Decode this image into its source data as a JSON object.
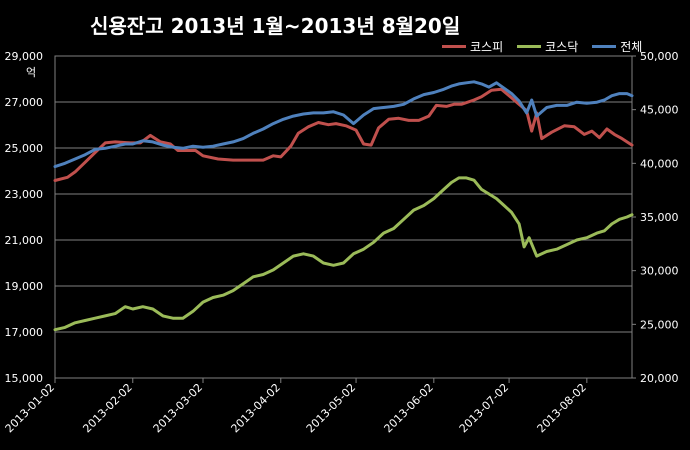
{
  "chart_data": {
    "type": "line",
    "title": "신용잔고 2013년 1월~2013년 8월20일",
    "left_axis_unit": "억",
    "y_left": {
      "min": 15000,
      "max": 29000,
      "ticks": [
        "15,000",
        "17,000",
        "19,000",
        "21,000",
        "23,000",
        "25,000",
        "27,000",
        "29,000"
      ]
    },
    "y_right": {
      "min": 20000,
      "max": 50000,
      "ticks": [
        "20,000",
        "25,000",
        "30,000",
        "35,000",
        "40,000",
        "45,000",
        "50,000"
      ]
    },
    "x_range": [
      "2013-01-02",
      "2013-08-20"
    ],
    "x_ticks": [
      "2013-01-02",
      "2013-02-02",
      "2013-03-02",
      "2013-04-02",
      "2013-05-02",
      "2013-06-02",
      "2013-07-02",
      "2013-08-02"
    ],
    "grid": true,
    "legend": "top-right",
    "series": [
      {
        "name": "코스피",
        "color": "#c0504d",
        "axis": "right",
        "points": [
          [
            "2013-01-02",
            38400
          ],
          [
            "2013-01-07",
            38700
          ],
          [
            "2013-01-10",
            39200
          ],
          [
            "2013-01-14",
            40100
          ],
          [
            "2013-01-18",
            41000
          ],
          [
            "2013-01-22",
            41900
          ],
          [
            "2013-01-26",
            42000
          ],
          [
            "2013-02-01",
            41900
          ],
          [
            "2013-02-05",
            41900
          ],
          [
            "2013-02-09",
            42600
          ],
          [
            "2013-02-13",
            42000
          ],
          [
            "2013-02-17",
            41800
          ],
          [
            "2013-02-20",
            41200
          ],
          [
            "2013-02-27",
            41200
          ],
          [
            "2013-03-02",
            40700
          ],
          [
            "2013-03-08",
            40400
          ],
          [
            "2013-03-14",
            40300
          ],
          [
            "2013-03-20",
            40300
          ],
          [
            "2013-03-26",
            40300
          ],
          [
            "2013-03-30",
            40700
          ],
          [
            "2013-04-02",
            40600
          ],
          [
            "2013-04-06",
            41600
          ],
          [
            "2013-04-09",
            42800
          ],
          [
            "2013-04-13",
            43400
          ],
          [
            "2013-04-17",
            43800
          ],
          [
            "2013-04-21",
            43600
          ],
          [
            "2013-04-24",
            43700
          ],
          [
            "2013-04-28",
            43500
          ],
          [
            "2013-05-02",
            43100
          ],
          [
            "2013-05-05",
            41800
          ],
          [
            "2013-05-08",
            41700
          ],
          [
            "2013-05-11",
            43300
          ],
          [
            "2013-05-15",
            44100
          ],
          [
            "2013-05-19",
            44200
          ],
          [
            "2013-05-23",
            44000
          ],
          [
            "2013-05-27",
            44000
          ],
          [
            "2013-05-31",
            44400
          ],
          [
            "2013-06-03",
            45400
          ],
          [
            "2013-06-07",
            45300
          ],
          [
            "2013-06-10",
            45500
          ],
          [
            "2013-06-13",
            45500
          ],
          [
            "2013-06-18",
            45900
          ],
          [
            "2013-06-21",
            46200
          ],
          [
            "2013-06-25",
            46800
          ],
          [
            "2013-06-29",
            46900
          ],
          [
            "2013-07-03",
            46100
          ],
          [
            "2013-07-06",
            45500
          ],
          [
            "2013-07-09",
            44900
          ],
          [
            "2013-07-11",
            43000
          ],
          [
            "2013-07-13",
            44700
          ],
          [
            "2013-07-15",
            42300
          ],
          [
            "2013-07-19",
            42900
          ],
          [
            "2013-07-24",
            43500
          ],
          [
            "2013-07-28",
            43400
          ],
          [
            "2013-08-01",
            42700
          ],
          [
            "2013-08-04",
            43000
          ],
          [
            "2013-08-07",
            42400
          ],
          [
            "2013-08-10",
            43200
          ],
          [
            "2013-08-13",
            42700
          ],
          [
            "2013-08-16",
            42300
          ],
          [
            "2013-08-20",
            41700
          ]
        ]
      },
      {
        "name": "코스닥",
        "color": "#9bbb59",
        "axis": "left",
        "points": [
          [
            "2013-01-02",
            17100
          ],
          [
            "2013-01-06",
            17200
          ],
          [
            "2013-01-10",
            17400
          ],
          [
            "2013-01-14",
            17500
          ],
          [
            "2013-01-18",
            17600
          ],
          [
            "2013-01-22",
            17700
          ],
          [
            "2013-01-26",
            17800
          ],
          [
            "2013-01-30",
            18100
          ],
          [
            "2013-02-02",
            18000
          ],
          [
            "2013-02-06",
            18100
          ],
          [
            "2013-02-10",
            18000
          ],
          [
            "2013-02-14",
            17700
          ],
          [
            "2013-02-18",
            17600
          ],
          [
            "2013-02-22",
            17600
          ],
          [
            "2013-02-26",
            17900
          ],
          [
            "2013-03-02",
            18300
          ],
          [
            "2013-03-06",
            18500
          ],
          [
            "2013-03-10",
            18600
          ],
          [
            "2013-03-14",
            18800
          ],
          [
            "2013-03-18",
            19100
          ],
          [
            "2013-03-22",
            19400
          ],
          [
            "2013-03-26",
            19500
          ],
          [
            "2013-03-30",
            19700
          ],
          [
            "2013-04-03",
            20000
          ],
          [
            "2013-04-07",
            20300
          ],
          [
            "2013-04-11",
            20400
          ],
          [
            "2013-04-15",
            20300
          ],
          [
            "2013-04-19",
            20000
          ],
          [
            "2013-04-23",
            19900
          ],
          [
            "2013-04-27",
            20000
          ],
          [
            "2013-05-01",
            20400
          ],
          [
            "2013-05-05",
            20600
          ],
          [
            "2013-05-09",
            20900
          ],
          [
            "2013-05-13",
            21300
          ],
          [
            "2013-05-17",
            21500
          ],
          [
            "2013-05-21",
            21900
          ],
          [
            "2013-05-25",
            22300
          ],
          [
            "2013-05-29",
            22500
          ],
          [
            "2013-06-02",
            22800
          ],
          [
            "2013-06-06",
            23200
          ],
          [
            "2013-06-09",
            23500
          ],
          [
            "2013-06-12",
            23700
          ],
          [
            "2013-06-15",
            23700
          ],
          [
            "2013-06-18",
            23600
          ],
          [
            "2013-06-21",
            23200
          ],
          [
            "2013-06-24",
            23000
          ],
          [
            "2013-06-27",
            22800
          ],
          [
            "2013-06-30",
            22500
          ],
          [
            "2013-07-03",
            22200
          ],
          [
            "2013-07-06",
            21700
          ],
          [
            "2013-07-08",
            20700
          ],
          [
            "2013-07-10",
            21100
          ],
          [
            "2013-07-13",
            20300
          ],
          [
            "2013-07-17",
            20500
          ],
          [
            "2013-07-21",
            20600
          ],
          [
            "2013-07-25",
            20800
          ],
          [
            "2013-07-29",
            21000
          ],
          [
            "2013-08-02",
            21100
          ],
          [
            "2013-08-06",
            21300
          ],
          [
            "2013-08-09",
            21400
          ],
          [
            "2013-08-12",
            21700
          ],
          [
            "2013-08-15",
            21900
          ],
          [
            "2013-08-18",
            22000
          ],
          [
            "2013-08-20",
            22100
          ]
        ]
      },
      {
        "name": "전체",
        "color": "#4f81bd",
        "axis": "right",
        "points": [
          [
            "2013-01-02",
            39700
          ],
          [
            "2013-01-06",
            40000
          ],
          [
            "2013-01-10",
            40400
          ],
          [
            "2013-01-14",
            40800
          ],
          [
            "2013-01-18",
            41300
          ],
          [
            "2013-01-22",
            41400
          ],
          [
            "2013-01-26",
            41600
          ],
          [
            "2013-01-30",
            41800
          ],
          [
            "2013-02-02",
            41800
          ],
          [
            "2013-02-06",
            42100
          ],
          [
            "2013-02-10",
            42000
          ],
          [
            "2013-02-14",
            41700
          ],
          [
            "2013-02-18",
            41500
          ],
          [
            "2013-02-22",
            41400
          ],
          [
            "2013-02-26",
            41600
          ],
          [
            "2013-03-02",
            41500
          ],
          [
            "2013-03-06",
            41600
          ],
          [
            "2013-03-10",
            41800
          ],
          [
            "2013-03-14",
            42000
          ],
          [
            "2013-03-18",
            42300
          ],
          [
            "2013-03-22",
            42800
          ],
          [
            "2013-03-26",
            43200
          ],
          [
            "2013-03-30",
            43700
          ],
          [
            "2013-04-03",
            44100
          ],
          [
            "2013-04-07",
            44400
          ],
          [
            "2013-04-11",
            44600
          ],
          [
            "2013-04-15",
            44700
          ],
          [
            "2013-04-19",
            44700
          ],
          [
            "2013-04-23",
            44800
          ],
          [
            "2013-04-27",
            44500
          ],
          [
            "2013-05-01",
            43700
          ],
          [
            "2013-05-05",
            44500
          ],
          [
            "2013-05-09",
            45100
          ],
          [
            "2013-05-13",
            45200
          ],
          [
            "2013-05-17",
            45300
          ],
          [
            "2013-05-21",
            45500
          ],
          [
            "2013-05-25",
            46000
          ],
          [
            "2013-05-29",
            46400
          ],
          [
            "2013-06-02",
            46600
          ],
          [
            "2013-06-06",
            46900
          ],
          [
            "2013-06-09",
            47200
          ],
          [
            "2013-06-12",
            47400
          ],
          [
            "2013-06-15",
            47500
          ],
          [
            "2013-06-18",
            47600
          ],
          [
            "2013-06-21",
            47400
          ],
          [
            "2013-06-24",
            47100
          ],
          [
            "2013-06-27",
            47500
          ],
          [
            "2013-06-30",
            47000
          ],
          [
            "2013-07-03",
            46500
          ],
          [
            "2013-07-06",
            45800
          ],
          [
            "2013-07-09",
            44700
          ],
          [
            "2013-07-11",
            45900
          ],
          [
            "2013-07-13",
            44400
          ],
          [
            "2013-07-17",
            45200
          ],
          [
            "2013-07-21",
            45400
          ],
          [
            "2013-07-25",
            45400
          ],
          [
            "2013-07-29",
            45700
          ],
          [
            "2013-08-02",
            45600
          ],
          [
            "2013-08-06",
            45700
          ],
          [
            "2013-08-09",
            45900
          ],
          [
            "2013-08-12",
            46300
          ],
          [
            "2013-08-15",
            46500
          ],
          [
            "2013-08-18",
            46500
          ],
          [
            "2013-08-20",
            46300
          ]
        ]
      }
    ]
  }
}
